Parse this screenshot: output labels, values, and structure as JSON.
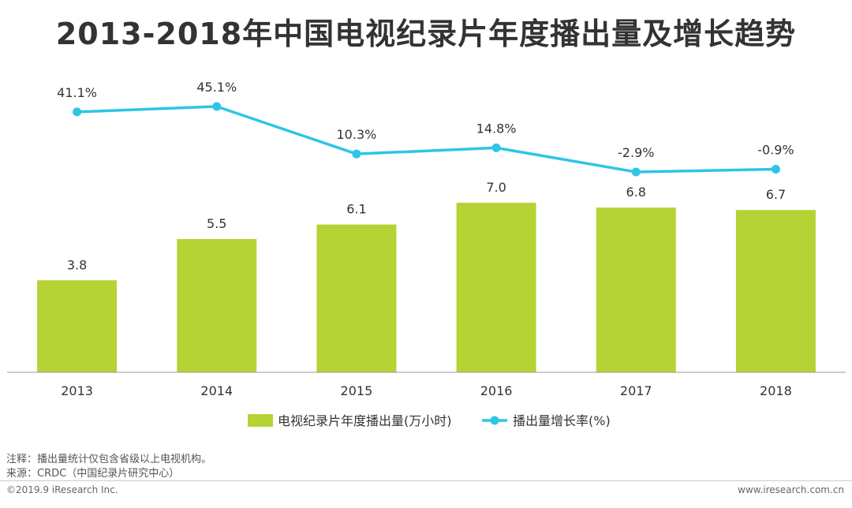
{
  "title": "2013-2018年中国电视纪录片年度播出量及增长趋势",
  "notes": {
    "note_line": "注释：播出量统计仅包含省级以上电视机构。",
    "source_line": "来源：CRDC（中国纪录片研究中心）"
  },
  "footer": {
    "left": "©2019.9 iResearch Inc.",
    "right": "www.iresearch.com.cn"
  },
  "colors": {
    "bar": "#b5d334",
    "line": "#2ec5e6",
    "axis": "#999999",
    "text": "#333333"
  },
  "chart_data": {
    "type": "bar",
    "categories": [
      "2013",
      "2014",
      "2015",
      "2016",
      "2017",
      "2018"
    ],
    "series": [
      {
        "name": "电视纪录片年度播出量(万小时)",
        "type": "bar",
        "values": [
          3.8,
          5.5,
          6.1,
          7.0,
          6.8,
          6.7
        ],
        "labels": [
          "3.8",
          "5.5",
          "6.1",
          "7.0",
          "6.8",
          "6.7"
        ]
      },
      {
        "name": "播出量增长率(%)",
        "type": "line",
        "values": [
          41.1,
          45.1,
          10.3,
          14.8,
          -2.9,
          -0.9
        ],
        "labels": [
          "41.1%",
          "45.1%",
          "10.3%",
          "14.8%",
          "-2.9%",
          "-0.9%"
        ]
      }
    ],
    "legend_position": "bottom",
    "grid": false
  }
}
